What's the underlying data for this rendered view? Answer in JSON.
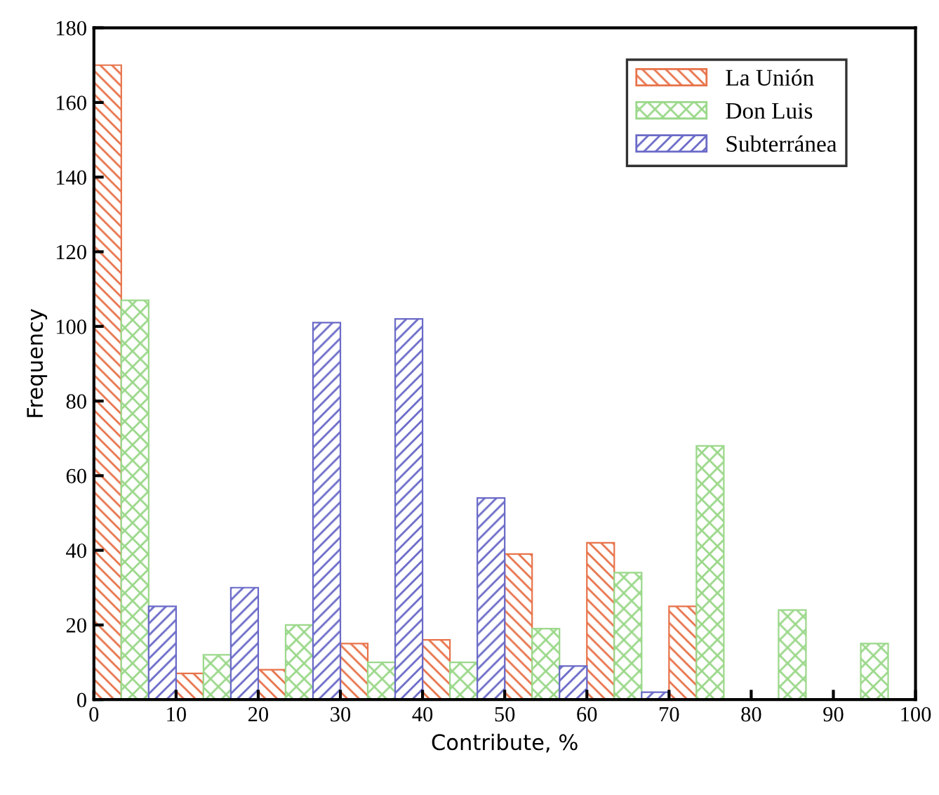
{
  "chart_data": {
    "type": "histogram",
    "xlabel": "Contribute, %",
    "ylabel": "Frequency",
    "bins": [
      0,
      10,
      20,
      30,
      40,
      50,
      60,
      70,
      80,
      90,
      100
    ],
    "series": [
      {
        "name": "La Unión",
        "color": "#e8734a",
        "values": [
          170,
          7,
          8,
          15,
          16,
          39,
          42,
          25,
          0,
          0
        ]
      },
      {
        "name": "Don Luis",
        "color": "#9bd88a",
        "values": [
          107,
          12,
          20,
          10,
          10,
          19,
          34,
          68,
          24,
          15
        ]
      },
      {
        "name": "Subterránea",
        "color": "#6a6ac8",
        "values": [
          25,
          30,
          101,
          102,
          54,
          9,
          2,
          0,
          0,
          0
        ]
      }
    ],
    "xlim": [
      0,
      100
    ],
    "xticks": [
      0,
      10,
      20,
      30,
      40,
      50,
      60,
      70,
      80,
      90,
      100
    ],
    "ylim": [
      0,
      180
    ],
    "yticks": [
      0,
      20,
      40,
      60,
      80,
      100,
      120,
      140,
      160,
      180
    ],
    "grid": false,
    "legend": "top right"
  }
}
